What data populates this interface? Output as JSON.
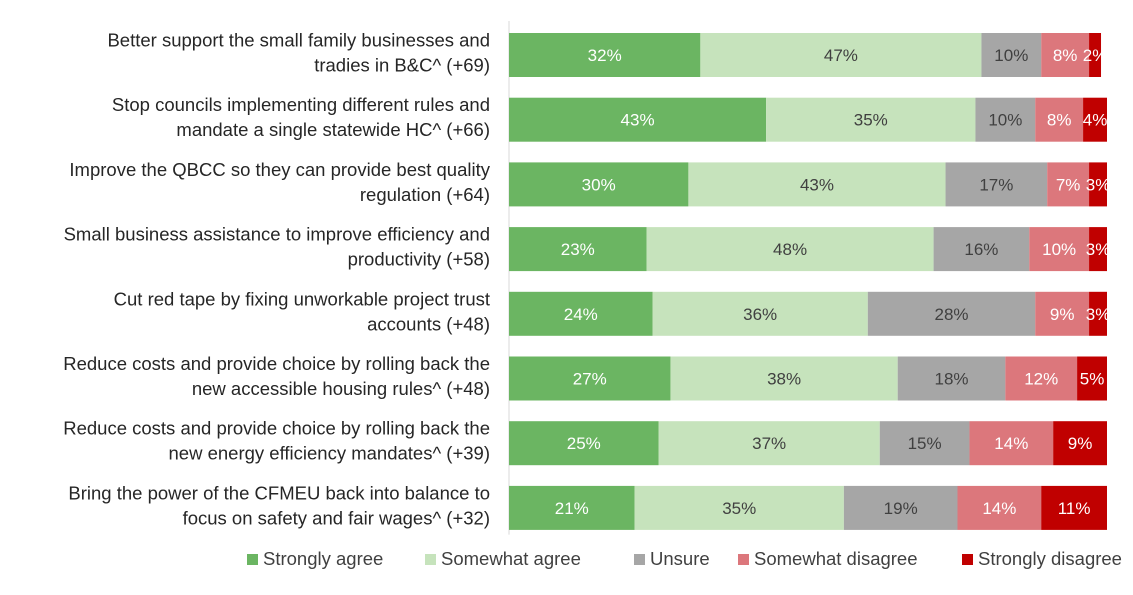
{
  "chart_data": {
    "type": "bar",
    "orientation": "horizontal",
    "stacked": true,
    "percent": true,
    "categories": [
      [
        "Better support the small family businesses and",
        "tradies in B&C^ (+69)"
      ],
      [
        "Stop councils implementing different rules and",
        "mandate a single statewide HC^ (+66)"
      ],
      [
        "Improve the QBCC so they can provide best quality",
        "regulation (+64)"
      ],
      [
        "Small business assistance to improve efficiency and",
        "productivity (+58)"
      ],
      [
        "Cut red tape by fixing unworkable project trust",
        "accounts (+48)"
      ],
      [
        "Reduce costs and provide choice by rolling back the",
        "new accessible housing rules^ (+48)"
      ],
      [
        "Reduce costs and provide choice by rolling back the",
        "new energy efficiency mandates^ (+39)"
      ],
      [
        "Bring the power of the CFMEU back into balance to",
        "focus on safety and fair wages^ (+32)"
      ]
    ],
    "series": [
      {
        "name": "Strongly agree",
        "color": "#6bb562",
        "label_color": "#ffffff",
        "values": [
          32,
          43,
          30,
          23,
          24,
          27,
          25,
          21
        ]
      },
      {
        "name": "Somewhat agree",
        "color": "#c6e3bc",
        "label_color": "#404040",
        "values": [
          47,
          35,
          43,
          48,
          36,
          38,
          37,
          35
        ]
      },
      {
        "name": "Unsure",
        "color": "#a6a6a6",
        "label_color": "#404040",
        "values": [
          10,
          10,
          17,
          16,
          28,
          18,
          15,
          19
        ]
      },
      {
        "name": "Somewhat disagree",
        "color": "#dc777c",
        "label_color": "#ffffff",
        "values": [
          8,
          8,
          7,
          10,
          9,
          12,
          14,
          14
        ]
      },
      {
        "name": "Strongly disagree",
        "color": "#c00000",
        "label_color": "#ffffff",
        "values": [
          2,
          4,
          3,
          3,
          3,
          5,
          9,
          11
        ]
      }
    ],
    "value_suffix": "%",
    "legend_position": "bottom",
    "grid": false
  }
}
